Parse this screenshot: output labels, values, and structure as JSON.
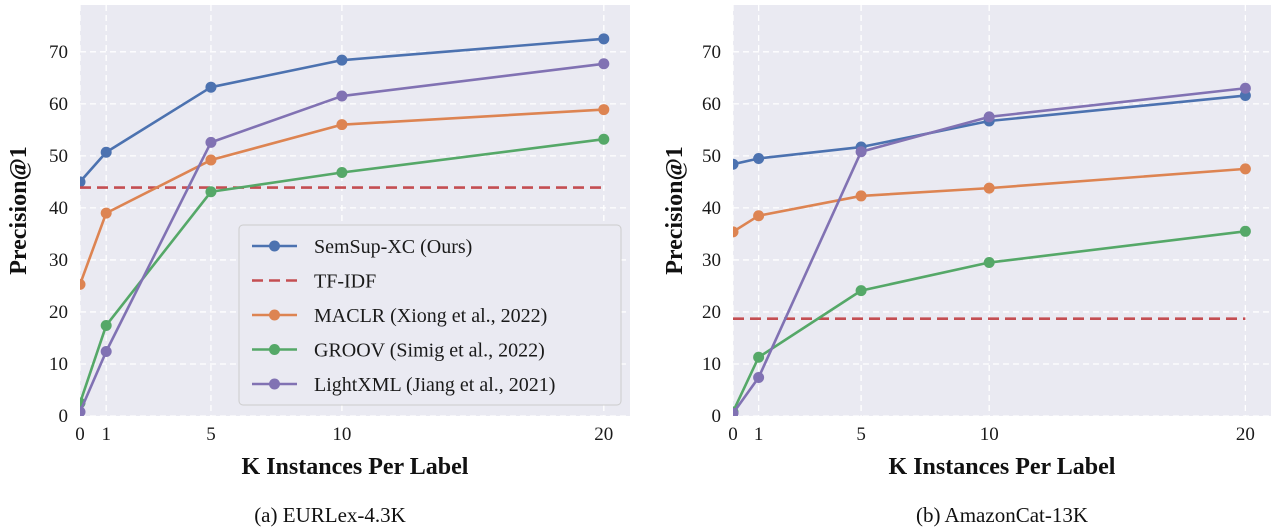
{
  "chart_data": [
    {
      "type": "line",
      "caption": "(a) EURLex-4.3K",
      "xlabel": "K Instances Per Label",
      "ylabel": "Precision@1",
      "xlim": [
        0,
        21
      ],
      "ylim": [
        0,
        79
      ],
      "xticks": [
        0,
        1,
        5,
        10,
        20
      ],
      "yticks": [
        0,
        10,
        20,
        30,
        40,
        50,
        60,
        70
      ],
      "grid": true,
      "legend": {
        "show": true,
        "position": "lower-right"
      },
      "series": [
        {
          "name": "SemSup-XC (Ours)",
          "color": "#4c72b0",
          "style": "solid-marker",
          "x": [
            0,
            1,
            5,
            10,
            20
          ],
          "y": [
            45,
            50.7,
            63.2,
            68.4,
            72.5
          ]
        },
        {
          "name": "TF-IDF",
          "color": "#c44e52",
          "style": "dashed",
          "x": [
            0,
            20
          ],
          "y": [
            43.9,
            43.9
          ]
        },
        {
          "name": "MACLR (Xiong et al., 2022)",
          "color": "#dd8452",
          "style": "solid-marker",
          "x": [
            0,
            1,
            5,
            10,
            20
          ],
          "y": [
            25.3,
            39,
            49.2,
            56,
            58.9
          ]
        },
        {
          "name": "GROOV (Simig et al., 2022)",
          "color": "#55a868",
          "style": "solid-marker",
          "x": [
            0,
            1,
            5,
            10,
            20
          ],
          "y": [
            2.5,
            17.4,
            43.1,
            46.8,
            53.2
          ]
        },
        {
          "name": "LightXML (Jiang et al., 2021)",
          "color": "#8172b3",
          "style": "solid-marker",
          "x": [
            0,
            1,
            5,
            10,
            20
          ],
          "y": [
            0.8,
            12.4,
            52.6,
            61.5,
            67.7
          ]
        }
      ]
    },
    {
      "type": "line",
      "caption": "(b) AmazonCat-13K",
      "xlabel": "K Instances Per Label",
      "ylabel": "Precision@1",
      "xlim": [
        0,
        21
      ],
      "ylim": [
        0,
        79
      ],
      "xticks": [
        0,
        1,
        5,
        10,
        20
      ],
      "yticks": [
        0,
        10,
        20,
        30,
        40,
        50,
        60,
        70
      ],
      "grid": true,
      "legend": {
        "show": false
      },
      "series": [
        {
          "name": "SemSup-XC (Ours)",
          "color": "#4c72b0",
          "style": "solid-marker",
          "x": [
            0,
            1,
            5,
            10,
            20
          ],
          "y": [
            48.4,
            49.5,
            51.7,
            56.7,
            61.6
          ]
        },
        {
          "name": "TF-IDF",
          "color": "#c44e52",
          "style": "dashed",
          "x": [
            0,
            20
          ],
          "y": [
            18.7,
            18.7
          ]
        },
        {
          "name": "MACLR (Xiong et al., 2022)",
          "color": "#dd8452",
          "style": "solid-marker",
          "x": [
            0,
            1,
            5,
            10,
            20
          ],
          "y": [
            35.4,
            38.5,
            42.3,
            43.8,
            47.5
          ]
        },
        {
          "name": "GROOV (Simig et al., 2022)",
          "color": "#55a868",
          "style": "solid-marker",
          "x": [
            0,
            1,
            5,
            10,
            20
          ],
          "y": [
            0.8,
            11.3,
            24.1,
            29.5,
            35.5
          ]
        },
        {
          "name": "LightXML (Jiang et al., 2021)",
          "color": "#8172b3",
          "style": "solid-marker",
          "x": [
            0,
            1,
            5,
            10,
            20
          ],
          "y": [
            0.5,
            7.4,
            50.8,
            57.5,
            63
          ]
        }
      ]
    }
  ]
}
